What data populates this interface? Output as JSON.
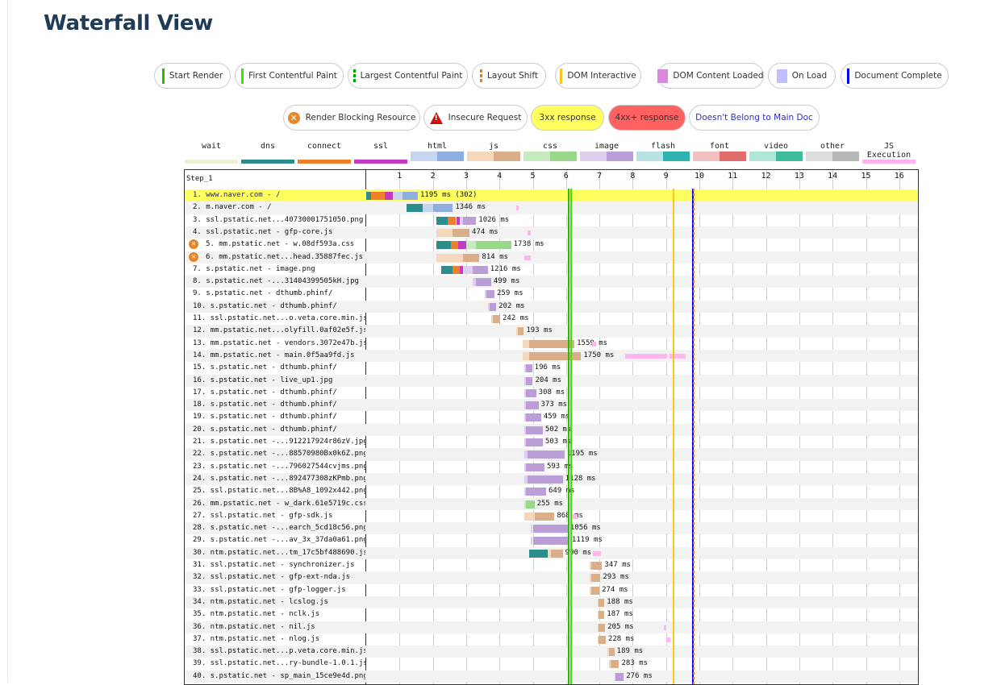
{
  "page": {
    "title": "Waterfall View"
  },
  "legend_top": [
    {
      "label": "Start Render",
      "marker": "solid",
      "color": "#28bc00"
    },
    {
      "label": "First Contentful Paint",
      "marker": "solid",
      "color": "#39e600"
    },
    {
      "label": "Largest Contentful Paint",
      "marker": "dashed",
      "color": "#00a000"
    },
    {
      "label": "Layout Shift",
      "marker": "dashed",
      "color": "#f08000"
    },
    {
      "label": "DOM Interactive",
      "marker": "solid",
      "color": "#ffc61a"
    },
    {
      "label": "DOM Content Loaded",
      "marker": "square",
      "color": "#d888df"
    },
    {
      "label": "On Load",
      "marker": "square",
      "color": "#c0c0ff"
    },
    {
      "label": "Document Complete",
      "marker": "solid",
      "color": "#0000ff"
    }
  ],
  "legend_second": [
    {
      "label": "Render Blocking Resource",
      "icon": "render-blocking-icon"
    },
    {
      "label": "Insecure Request",
      "icon": "warning-icon"
    },
    {
      "label": "3xx response",
      "bg": "#ffff60"
    },
    {
      "label": "4xx+ response",
      "bg": "#ff6060"
    },
    {
      "label": "Doesn't Belong to Main Doc",
      "color": "#3030c0"
    }
  ],
  "timing_legend": [
    {
      "label": "wait",
      "colors": [
        "#f0efd8"
      ]
    },
    {
      "label": "dns",
      "colors": [
        "#2d8d8d"
      ]
    },
    {
      "label": "connect",
      "colors": [
        "#f07f2a"
      ]
    },
    {
      "label": "ssl",
      "colors": [
        "#c43ac4"
      ]
    },
    {
      "label": "html",
      "colors": [
        "#c5d6ee",
        "#8eaee0"
      ]
    },
    {
      "label": "js",
      "colors": [
        "#f5d8bc",
        "#dbae8a"
      ]
    },
    {
      "label": "css",
      "colors": [
        "#c8eac0",
        "#99d88a"
      ]
    },
    {
      "label": "image",
      "colors": [
        "#dcd0ec",
        "#bb9ed8"
      ]
    },
    {
      "label": "flash",
      "colors": [
        "#b7e3e3",
        "#2fb1b1"
      ]
    },
    {
      "label": "font",
      "colors": [
        "#f2c0c0",
        "#e06c6c"
      ]
    },
    {
      "label": "video",
      "colors": [
        "#aee6d8",
        "#3fbc9c"
      ]
    },
    {
      "label": "other",
      "colors": [
        "#dcdcdc",
        "#b8b8b8"
      ]
    },
    {
      "label": "JS Execution",
      "colors": [
        "#ffb6f0"
      ]
    }
  ],
  "waterfall": {
    "step_label": "Step_1",
    "ticks": [
      "1",
      "2",
      "3",
      "4",
      "5",
      "6",
      "7",
      "8",
      "9",
      "10",
      "11",
      "12",
      "13",
      "14",
      "15",
      "16"
    ],
    "markers": [
      {
        "name": "start-render-line",
        "t": 6.05,
        "color": "#28bc00"
      },
      {
        "name": "first-contentful-paint-line",
        "t": 6.13,
        "color": "#39e600"
      },
      {
        "name": "dom-interactive-line",
        "t": 9.2,
        "color": "#ffc61a"
      },
      {
        "name": "document-complete-line",
        "t": 9.77,
        "color": "#0000ff"
      },
      {
        "name": "largest-contentful-paint-line",
        "t": 9.8,
        "color": "#f08000"
      }
    ],
    "rows": [
      {
        "label": "1. www.naver.com - /",
        "time": "1195 ms (302)",
        "type": "html",
        "start": 0.0,
        "dns": 0.15,
        "connect": 0.4,
        "ssl": 0.25,
        "wait": 0.3,
        "dl": 0.45,
        "hl": "3xx",
        "exec": []
      },
      {
        "label": "2. m.naver.com - /",
        "time": "1346 ms",
        "type": "html",
        "start": 1.2,
        "dns": 0.5,
        "connect": 0,
        "ssl": 0,
        "wait": 0.3,
        "dl": 0.6,
        "exec": [
          [
            4.5,
            0.05
          ]
        ]
      },
      {
        "label": "3. ssl.pstatic.net...40730001751050.png",
        "time": "1026 ms",
        "type": "image",
        "start": 2.1,
        "dns": 0.35,
        "connect": 0.25,
        "ssl": 0.1,
        "wait": 0.1,
        "dl": 0.4,
        "exec": []
      },
      {
        "label": "4. ssl.pstatic.net - gfp-core.js",
        "time": "474 ms",
        "type": "js",
        "start": 2.1,
        "dns": 0,
        "connect": 0,
        "ssl": 0,
        "wait": 0.5,
        "dl": 0.5,
        "exec": [
          [
            4.85,
            0.08
          ]
        ]
      },
      {
        "label": "5. mm.pstatic.net - w.08df593a.css",
        "time": "1738 ms",
        "type": "css",
        "start": 2.1,
        "dns": 0.45,
        "connect": 0.2,
        "ssl": 0.25,
        "wait": 0.3,
        "dl": 1.05,
        "rb": true,
        "exec": []
      },
      {
        "label": "6. mm.pstatic.net...head.35887fec.js",
        "time": "814 ms",
        "type": "js",
        "start": 2.1,
        "dns": 0,
        "connect": 0,
        "ssl": 0,
        "wait": 0.8,
        "dl": 0.5,
        "rb": true,
        "exec": [
          [
            4.75,
            0.2
          ]
        ]
      },
      {
        "label": "7. s.pstatic.net - image.png",
        "time": "1216 ms",
        "type": "image",
        "start": 2.25,
        "dns": 0.35,
        "connect": 0.2,
        "ssl": 0.1,
        "wait": 0.3,
        "dl": 0.45,
        "exec": []
      },
      {
        "label": "8. s.pstatic.net -...31404399505kH.jpg",
        "time": "499 ms",
        "type": "image",
        "start": 3.2,
        "dns": 0,
        "connect": 0,
        "ssl": 0,
        "wait": 0.1,
        "dl": 0.45,
        "exec": []
      },
      {
        "label": "9. s.pstatic.net - dthumb.phinf/",
        "time": "259 ms",
        "type": "image",
        "start": 3.55,
        "dns": 0,
        "connect": 0,
        "ssl": 0,
        "wait": 0.05,
        "dl": 0.25,
        "exec": []
      },
      {
        "label": "10. s.pstatic.net - dthumb.phinf/",
        "time": "202 ms",
        "type": "image",
        "start": 3.65,
        "dns": 0,
        "connect": 0,
        "ssl": 0,
        "wait": 0.05,
        "dl": 0.2,
        "exec": []
      },
      {
        "label": "11. ssl.pstatic.net...o.veta.core.min.js",
        "time": "242 ms",
        "type": "js",
        "start": 3.75,
        "dns": 0,
        "connect": 0,
        "ssl": 0,
        "wait": 0.05,
        "dl": 0.22,
        "exec": []
      },
      {
        "label": "12. mm.pstatic.net...olyfill.0af02e5f.js",
        "time": "193 ms",
        "type": "js",
        "start": 4.5,
        "dns": 0,
        "connect": 0,
        "ssl": 0,
        "wait": 0.05,
        "dl": 0.18,
        "exec": []
      },
      {
        "label": "13. mm.pstatic.net - vendors.3072e47b.js",
        "time": "1559 ms",
        "type": "js",
        "start": 4.7,
        "dns": 0,
        "connect": 0,
        "ssl": 0,
        "wait": 0.2,
        "dl": 1.35,
        "exec": [
          [
            6.78,
            0.12
          ]
        ]
      },
      {
        "label": "14. mm.pstatic.net - main.0f5aa9fd.js",
        "time": "1750 ms",
        "type": "js",
        "start": 4.7,
        "dns": 0,
        "connect": 0,
        "ssl": 0,
        "wait": 0.2,
        "dl": 1.55,
        "exec": [
          [
            7.78,
            1.25
          ],
          [
            9.1,
            0.5
          ]
        ]
      },
      {
        "label": "15. s.pstatic.net - dthumb.phinf/",
        "time": "196 ms",
        "type": "image",
        "start": 4.75,
        "dns": 0,
        "connect": 0,
        "ssl": 0,
        "wait": 0.05,
        "dl": 0.18,
        "exec": []
      },
      {
        "label": "16. s.pstatic.net - live_up1.jpg",
        "time": "204 ms",
        "type": "image",
        "start": 4.75,
        "dns": 0,
        "connect": 0,
        "ssl": 0,
        "wait": 0.05,
        "dl": 0.2,
        "exec": []
      },
      {
        "label": "17. s.pstatic.net - dthumb.phinf/",
        "time": "308 ms",
        "type": "image",
        "start": 4.75,
        "dns": 0,
        "connect": 0,
        "ssl": 0,
        "wait": 0.05,
        "dl": 0.3,
        "exec": []
      },
      {
        "label": "18. s.pstatic.net - dthumb.phinf/",
        "time": "373 ms",
        "type": "image",
        "start": 4.75,
        "dns": 0,
        "connect": 0,
        "ssl": 0,
        "wait": 0.05,
        "dl": 0.37,
        "exec": []
      },
      {
        "label": "19. s.pstatic.net - dthumb.phinf/",
        "time": "459 ms",
        "type": "image",
        "start": 4.75,
        "dns": 0,
        "connect": 0,
        "ssl": 0,
        "wait": 0.05,
        "dl": 0.45,
        "exec": []
      },
      {
        "label": "20. s.pstatic.net - dthumb.phinf/",
        "time": "502 ms",
        "type": "image",
        "start": 4.75,
        "dns": 0,
        "connect": 0,
        "ssl": 0,
        "wait": 0.05,
        "dl": 0.5,
        "exec": []
      },
      {
        "label": "21. s.pstatic.net -...912217924r86zV.jpg",
        "time": "503 ms",
        "type": "image",
        "start": 4.75,
        "dns": 0,
        "connect": 0,
        "ssl": 0,
        "wait": 0.05,
        "dl": 0.5,
        "exec": []
      },
      {
        "label": "22. s.pstatic.net -...88570980Bx0k6Z.png",
        "time": "1195 ms",
        "type": "image",
        "start": 4.75,
        "dns": 0,
        "connect": 0,
        "ssl": 0,
        "wait": 0.1,
        "dl": 1.1,
        "exec": []
      },
      {
        "label": "23. s.pstatic.net -...796027544cvjms.png",
        "time": "593 ms",
        "type": "image",
        "start": 4.75,
        "dns": 0,
        "connect": 0,
        "ssl": 0,
        "wait": 0.05,
        "dl": 0.55,
        "exec": []
      },
      {
        "label": "24. s.pstatic.net -...892477308zKPmb.png",
        "time": "1128 ms",
        "type": "image",
        "start": 4.75,
        "dns": 0,
        "connect": 0,
        "ssl": 0,
        "wait": 0.1,
        "dl": 1.05,
        "exec": []
      },
      {
        "label": "25. ssl.pstatic.net...8B%A8_1092x442.png",
        "time": "649 ms",
        "type": "image",
        "start": 4.75,
        "dns": 0,
        "connect": 0,
        "ssl": 0,
        "wait": 0.05,
        "dl": 0.6,
        "exec": []
      },
      {
        "label": "26. mm.pstatic.net - w_dark.61e5719c.css",
        "time": "255 ms",
        "type": "css",
        "start": 4.75,
        "dns": 0,
        "connect": 0,
        "ssl": 0,
        "wait": 0.05,
        "dl": 0.25,
        "exec": []
      },
      {
        "label": "27. ssl.pstatic.net - gfp-sdk.js",
        "time": "868 ms",
        "type": "js",
        "start": 4.75,
        "dns": 0,
        "connect": 0,
        "ssl": 0,
        "wait": 0.3,
        "dl": 0.6,
        "exec": [
          [
            6.15,
            0.2
          ]
        ]
      },
      {
        "label": "28. s.pstatic.net -...earch_5cd18c56.png",
        "time": "1056 ms",
        "type": "image",
        "start": 4.95,
        "dns": 0,
        "connect": 0,
        "ssl": 0,
        "wait": 0.05,
        "dl": 1.05,
        "exec": []
      },
      {
        "label": "29. s.pstatic.net -...av_3x_37da0a61.png",
        "time": "1119 ms",
        "type": "image",
        "start": 4.95,
        "dns": 0,
        "connect": 0,
        "ssl": 0,
        "wait": 0.05,
        "dl": 1.1,
        "exec": []
      },
      {
        "label": "30. ntm.pstatic.net...tm_17c5bf488690.js",
        "time": "990 ms",
        "type": "js",
        "start": 4.9,
        "dns": 0.55,
        "connect": 0,
        "ssl": 0,
        "wait": 0.1,
        "dl": 0.35,
        "exec": [
          [
            6.8,
            0.25
          ]
        ]
      },
      {
        "label": "31. ssl.pstatic.net - synchronizer.js",
        "time": "347 ms",
        "type": "js",
        "start": 6.7,
        "dns": 0,
        "connect": 0,
        "ssl": 0,
        "wait": 0.05,
        "dl": 0.33,
        "exec": []
      },
      {
        "label": "32. ssl.pstatic.net - gfp-ext-nda.js",
        "time": "293 ms",
        "type": "js",
        "start": 6.7,
        "dns": 0,
        "connect": 0,
        "ssl": 0,
        "wait": 0.05,
        "dl": 0.28,
        "exec": []
      },
      {
        "label": "33. ssl.pstatic.net - gfp-logger.js",
        "time": "274 ms",
        "type": "js",
        "start": 6.7,
        "dns": 0,
        "connect": 0,
        "ssl": 0,
        "wait": 0.05,
        "dl": 0.25,
        "exec": []
      },
      {
        "label": "34. ntm.pstatic.net - lcslog.js",
        "time": "188 ms",
        "type": "js",
        "start": 6.95,
        "dns": 0,
        "connect": 0,
        "ssl": 0,
        "wait": 0.03,
        "dl": 0.17,
        "exec": []
      },
      {
        "label": "35. ntm.pstatic.net - nclk.js",
        "time": "187 ms",
        "type": "js",
        "start": 6.95,
        "dns": 0,
        "connect": 0,
        "ssl": 0,
        "wait": 0.03,
        "dl": 0.17,
        "exec": []
      },
      {
        "label": "36. ntm.pstatic.net - nil.js",
        "time": "205 ms",
        "type": "js",
        "start": 6.95,
        "dns": 0,
        "connect": 0,
        "ssl": 0,
        "wait": 0.03,
        "dl": 0.19,
        "exec": [
          [
            8.93,
            0.07
          ]
        ]
      },
      {
        "label": "37. ntm.pstatic.net - nlog.js",
        "time": "228 ms",
        "type": "js",
        "start": 6.95,
        "dns": 0,
        "connect": 0,
        "ssl": 0,
        "wait": 0.03,
        "dl": 0.21,
        "exec": [
          [
            9.0,
            0.12
          ]
        ]
      },
      {
        "label": "38. ssl.pstatic.net...p.veta.core.min.js",
        "time": "189 ms",
        "type": "js",
        "start": 7.25,
        "dns": 0,
        "connect": 0,
        "ssl": 0,
        "wait": 0.03,
        "dl": 0.17,
        "exec": []
      },
      {
        "label": "39. ssl.pstatic.net...ry-bundle-1.0.1.js",
        "time": "283 ms",
        "type": "js",
        "start": 7.3,
        "dns": 0,
        "connect": 0,
        "ssl": 0,
        "wait": 0.03,
        "dl": 0.26,
        "exec": []
      },
      {
        "label": "40. s.pstatic.net - sp_main_15ce9e4d.png",
        "time": "276 ms",
        "type": "image",
        "start": 7.45,
        "dns": 0,
        "connect": 0,
        "ssl": 0,
        "wait": 0.03,
        "dl": 0.25,
        "exec": []
      }
    ]
  }
}
